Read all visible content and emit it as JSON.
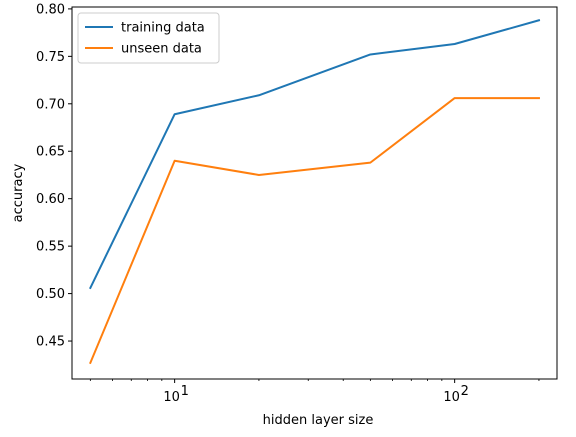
{
  "chart_data": {
    "type": "line",
    "title": "",
    "xlabel": "hidden layer size",
    "ylabel": "accuracy",
    "xscale": "log",
    "xlim": [
      4.3,
      232
    ],
    "ylim": [
      0.41,
      0.802
    ],
    "x": [
      5,
      10,
      20,
      50,
      100,
      200
    ],
    "x_major_ticks": [
      {
        "value": 10,
        "base": "10",
        "exp": "1"
      },
      {
        "value": 100,
        "base": "10",
        "exp": "2"
      }
    ],
    "y_ticks": [
      0.45,
      0.5,
      0.55,
      0.6,
      0.65,
      0.7,
      0.75,
      0.8
    ],
    "y_tick_labels": [
      "0.45",
      "0.50",
      "0.55",
      "0.60",
      "0.65",
      "0.70",
      "0.75",
      "0.80"
    ],
    "grid": false,
    "legend_position": "top-left",
    "series": [
      {
        "name": "training data",
        "color": "#1f77b4",
        "values": [
          0.506,
          0.689,
          0.709,
          0.752,
          0.763,
          0.788
        ]
      },
      {
        "name": "unseen data",
        "color": "#ff7f0e",
        "values": [
          0.427,
          0.64,
          0.625,
          0.638,
          0.706,
          0.706
        ]
      }
    ]
  }
}
